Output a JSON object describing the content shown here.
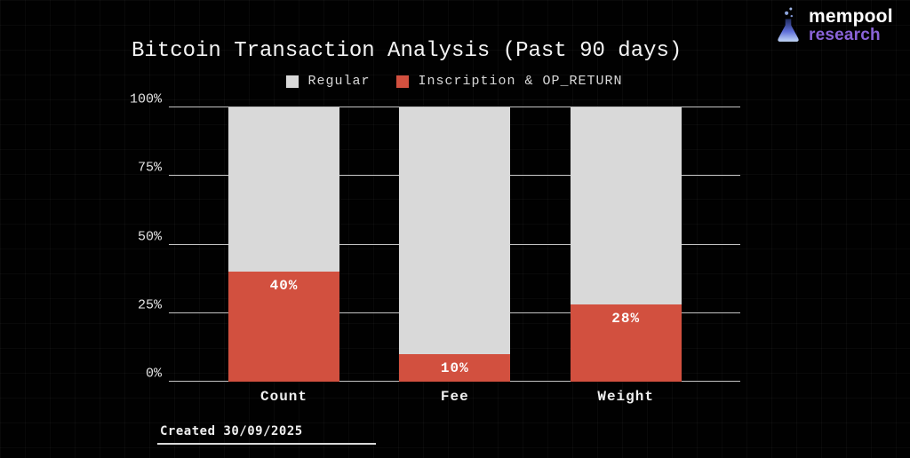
{
  "brand": {
    "name_top": "mempool",
    "name_bottom": "research",
    "name_bottom_color": "#8a63d8",
    "flask_icon": "flask-icon"
  },
  "footer": {
    "created_label": "Created 30/09/2025"
  },
  "colors": {
    "background": "#010101",
    "regular": "#d9d9d9",
    "inscription": "#d2503f",
    "gridline": "#d4d4d4",
    "text": "#f2f2f2"
  },
  "chart_data": {
    "type": "bar",
    "stacked": true,
    "title": "Bitcoin Transaction Analysis (Past 90 days)",
    "categories": [
      "Count",
      "Fee",
      "Weight"
    ],
    "series": [
      {
        "name": "Inscription & OP_RETURN",
        "color": "#d2503f",
        "values": [
          40,
          10,
          28
        ],
        "value_labels": [
          "40%",
          "10%",
          "28%"
        ]
      },
      {
        "name": "Regular",
        "color": "#d9d9d9",
        "values": [
          60,
          90,
          72
        ]
      }
    ],
    "legend": [
      {
        "label": "Regular",
        "color": "#d9d9d9"
      },
      {
        "label": "Inscription & OP_RETURN",
        "color": "#d2503f"
      }
    ],
    "legend_position": "top",
    "ylabel": "",
    "xlabel": "",
    "ylim": [
      0,
      100
    ],
    "yticks": [
      "0%",
      "25%",
      "50%",
      "75%",
      "100%"
    ],
    "grid": true
  }
}
